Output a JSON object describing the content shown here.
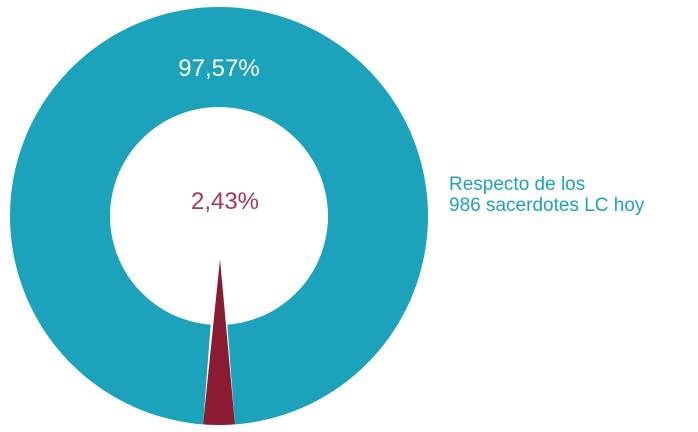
{
  "chart_data": {
    "type": "pie",
    "donut": true,
    "slices": [
      {
        "label": "97,57%",
        "value": 97.57,
        "color": "#1ca3bb",
        "label_color": "#ffffff"
      },
      {
        "label": "2,43%",
        "value": 2.43,
        "color": "#8b1a33",
        "label_color": "#a43a4a"
      }
    ],
    "annotation": {
      "line1": "Respecto de los",
      "line2": "986 sacerdotes LC hoy"
    }
  }
}
